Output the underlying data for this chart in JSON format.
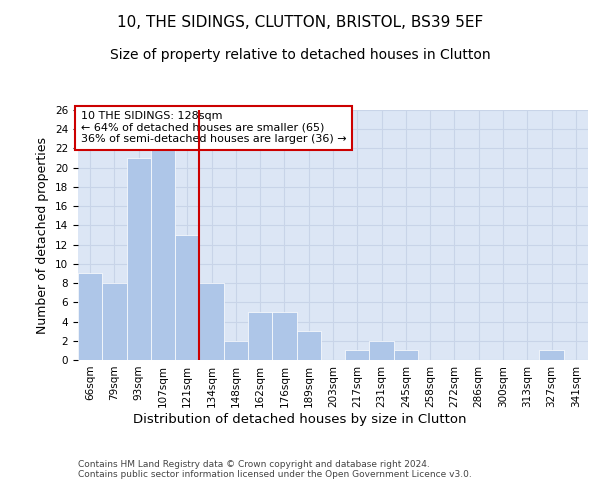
{
  "title": "10, THE SIDINGS, CLUTTON, BRISTOL, BS39 5EF",
  "subtitle": "Size of property relative to detached houses in Clutton",
  "xlabel": "Distribution of detached houses by size in Clutton",
  "ylabel": "Number of detached properties",
  "categories": [
    "66sqm",
    "79sqm",
    "93sqm",
    "107sqm",
    "121sqm",
    "134sqm",
    "148sqm",
    "162sqm",
    "176sqm",
    "189sqm",
    "203sqm",
    "217sqm",
    "231sqm",
    "245sqm",
    "258sqm",
    "272sqm",
    "286sqm",
    "300sqm",
    "313sqm",
    "327sqm",
    "341sqm"
  ],
  "values": [
    9,
    8,
    21,
    22,
    13,
    8,
    2,
    5,
    5,
    3,
    0,
    1,
    2,
    1,
    0,
    0,
    0,
    0,
    0,
    1,
    0
  ],
  "bar_color": "#aec6e8",
  "vline_x": 4.5,
  "vline_color": "#cc0000",
  "annotation_text": "10 THE SIDINGS: 128sqm\n← 64% of detached houses are smaller (65)\n36% of semi-detached houses are larger (36) →",
  "annotation_box_color": "#cc0000",
  "ylim": [
    0,
    26
  ],
  "yticks": [
    0,
    2,
    4,
    6,
    8,
    10,
    12,
    14,
    16,
    18,
    20,
    22,
    24,
    26
  ],
  "grid_color": "#c8d4e8",
  "bg_color": "#dce6f5",
  "footer": "Contains HM Land Registry data © Crown copyright and database right 2024.\nContains public sector information licensed under the Open Government Licence v3.0.",
  "title_fontsize": 11,
  "subtitle_fontsize": 10,
  "xlabel_fontsize": 9.5,
  "ylabel_fontsize": 9,
  "tick_fontsize": 7.5,
  "footer_fontsize": 6.5,
  "annotation_fontsize": 8
}
